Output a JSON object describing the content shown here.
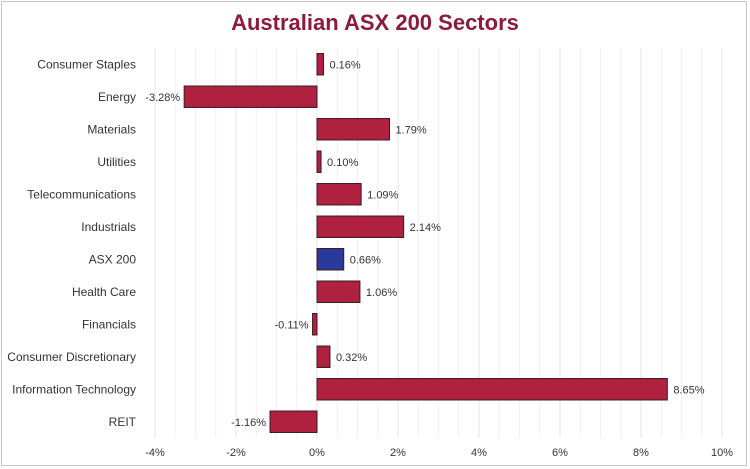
{
  "chart_data": {
    "type": "bar",
    "orientation": "horizontal",
    "title": "Australian ASX 200 Sectors",
    "categories": [
      "Consumer Staples",
      "Energy",
      "Materials",
      "Utilities",
      "Telecommunications",
      "Industrials",
      "ASX 200",
      "Health Care",
      "Financials",
      "Consumer Discretionary",
      "Information Technology",
      "REIT"
    ],
    "values": [
      0.16,
      -3.28,
      1.79,
      0.1,
      1.09,
      2.14,
      0.66,
      1.06,
      -0.11,
      0.32,
      8.65,
      -1.16
    ],
    "value_labels": [
      "0.16%",
      "-3.28%",
      "1.79%",
      "0.10%",
      "1.09%",
      "2.14%",
      "0.66%",
      "1.06%",
      "-0.11%",
      "0.32%",
      "8.65%",
      "-1.16%"
    ],
    "xlim": [
      -4,
      10
    ],
    "x_ticks": [
      -4,
      -2,
      0,
      2,
      4,
      6,
      8,
      10
    ],
    "x_tick_labels": [
      "-4%",
      "-2%",
      "0%",
      "2%",
      "4%",
      "6%",
      "8%",
      "10%"
    ],
    "xlabel": "",
    "ylabel": "",
    "grid": true,
    "legend": "none",
    "colors": {
      "bar": "#b0203f",
      "highlight_bar": "#2a3a9c",
      "bar_edge": "#3a1a22",
      "title": "#8b1a3c",
      "grid": "#e6e6e6"
    },
    "highlight_category": "ASX 200"
  }
}
